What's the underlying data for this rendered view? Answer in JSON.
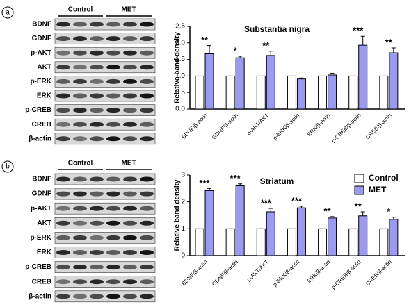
{
  "panels": [
    {
      "label": "a",
      "groups": [
        "Control",
        "MET"
      ],
      "rows": [
        "BDNF",
        "GDNF",
        "p-AKT",
        "AKT",
        "p-ERK",
        "ERK",
        "p-CREB",
        "CREB",
        "β-actin"
      ]
    },
    {
      "label": "b",
      "groups": [
        "Control",
        "MET"
      ],
      "rows": [
        "BDNF",
        "GDNF",
        "p-AKT",
        "AKT",
        "p-ERK",
        "ERK",
        "p-CREB",
        "CREB",
        "β-actin"
      ]
    }
  ],
  "chart_data": [
    {
      "type": "bar",
      "title": "Substantia nigra",
      "y_label": "Relative band density",
      "categories": [
        "BDNF/β-actin",
        "GDNF/β-actin",
        "p-AKT/AKT",
        "p-ERK/β-actin",
        "ERK/β-actin",
        "p-CREB/β-actin",
        "CREB/β-actin"
      ],
      "series": [
        {
          "color": "#ffffff",
          "values": [
            1,
            1,
            1,
            1,
            1,
            1,
            1
          ]
        },
        {
          "color": "#9a9af0",
          "values": [
            1.67,
            1.55,
            1.62,
            0.91,
            1.03,
            1.93,
            1.7
          ],
          "errors": [
            0.25,
            0.05,
            0.13,
            0.03,
            0.05,
            0.27,
            0.15
          ]
        }
      ],
      "annotations": [
        "**",
        "*",
        "**",
        null,
        null,
        "***",
        "**"
      ],
      "ylim": [
        0,
        2.5
      ],
      "yticks": [
        {
          "value": 0,
          "label": "0.0"
        },
        0.5,
        {
          "value": 1,
          "label": "1.0"
        },
        1.5,
        {
          "value": 2,
          "label": "2.0"
        },
        2.5
      ]
    },
    {
      "type": "bar",
      "title": "Striatum",
      "y_label": "Relative band density",
      "categories": [
        "BDNF/β-actin",
        "GDNF/β-actin",
        "p-AKT/AKT",
        "p-ERK/β-actin",
        "ERK/β-actin",
        "p-CREB/β-actin",
        "CREB/β-actin"
      ],
      "series": [
        {
          "name": "Control",
          "color": "#ffffff",
          "values": [
            1,
            1,
            1,
            1,
            1,
            1,
            1
          ]
        },
        {
          "name": "MET",
          "color": "#9a9af0",
          "values": [
            2.42,
            2.6,
            1.63,
            1.78,
            1.4,
            1.48,
            1.35
          ],
          "errors": [
            0.08,
            0.07,
            0.13,
            0.06,
            0.05,
            0.15,
            0.08
          ]
        }
      ],
      "annotations": [
        "***",
        "***",
        "***",
        "***",
        "**",
        "**",
        "*"
      ],
      "ylim": [
        0,
        3
      ],
      "yticks": [
        0,
        1,
        2,
        3
      ]
    }
  ]
}
